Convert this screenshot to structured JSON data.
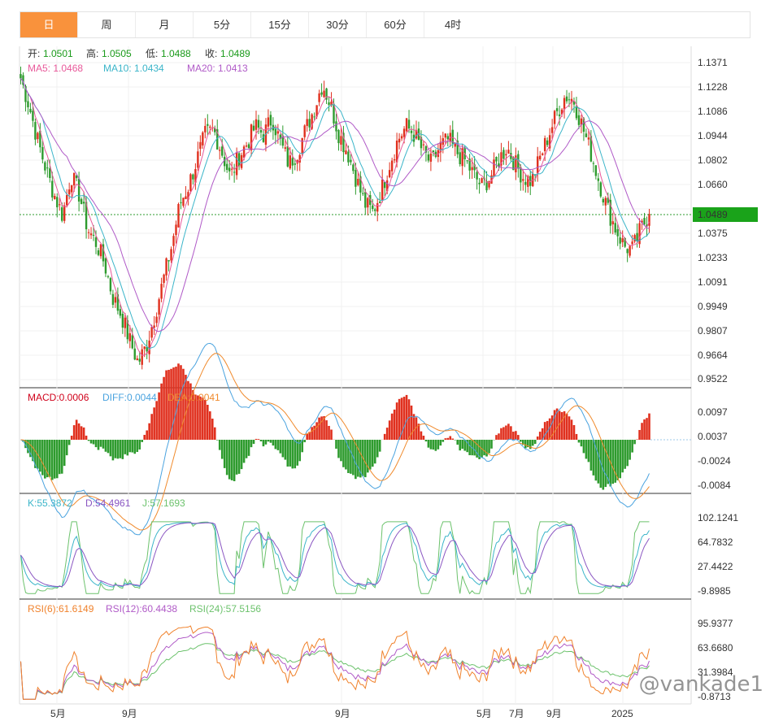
{
  "tabs": [
    "日",
    "周",
    "月",
    "5分",
    "15分",
    "30分",
    "60分",
    "4时"
  ],
  "active_tab": 0,
  "ohlc": {
    "open_label": "开:",
    "open": "1.0501",
    "high_label": "高:",
    "high": "1.0505",
    "low_label": "低:",
    "low": "1.0488",
    "close_label": "收:",
    "close": "1.0489"
  },
  "ma": {
    "ma5_label": "MA5: 1.0468",
    "ma10_label": "MA10: 1.0434",
    "ma20_label": "MA20: 1.0413"
  },
  "price_axis": [
    "1.1371",
    "1.1228",
    "1.1086",
    "1.0944",
    "1.0802",
    "1.0660",
    "1.0375",
    "1.0233",
    "1.0091",
    "0.9949",
    "0.9807",
    "0.9664",
    "0.9522"
  ],
  "last_price": "1.0489",
  "macd": {
    "macd_label": "MACD:0.0006",
    "diff_label": "DIFF:0.0044",
    "dea_label": "DEA:0.0041",
    "axis": [
      "0.0097",
      "0.0037",
      "-0.0024",
      "-0.0084"
    ]
  },
  "kdj": {
    "k_label": "K:55.3872",
    "d_label": "D:54.4961",
    "j_label": "J:57.1693",
    "axis": [
      "102.1241",
      "64.7832",
      "27.4422",
      "-9.8985"
    ]
  },
  "rsi": {
    "r6_label": "RSI(6):61.6149",
    "r12_label": "RSI(12):60.4438",
    "r24_label": "RSI(24):57.5156",
    "axis": [
      "95.9377",
      "63.6680",
      "31.3984",
      "-0.8713"
    ]
  },
  "x_axis": [
    "5月",
    "9月",
    "9月",
    "5月",
    "7月",
    "9月",
    "2025"
  ],
  "watermark": "@vankade1",
  "colors": {
    "up": "#e0301e",
    "down": "#2e9b2e",
    "accent": "#f9923c",
    "ma5": "#e8599a",
    "ma10": "#3bb5c9",
    "ma20": "#b05ac7",
    "macd_diff": "#4aa3df",
    "macd_dea": "#f08a2c",
    "k": "#3bb5c9",
    "d": "#8a56c2",
    "j": "#6cc26c",
    "rsi6": "#f0822c",
    "rsi12": "#b05ac7",
    "rsi24": "#6cc26c",
    "ohlc_value": "#1a9a1a",
    "macd_label": "#d0021b"
  },
  "chart_data": {
    "type": "candlestick",
    "yaxis_price": [
      0.9522,
      1.1371
    ],
    "close_path": [
      1.128,
      1.112,
      1.092,
      1.075,
      1.06,
      1.048,
      1.072,
      1.06,
      1.04,
      1.032,
      1.02,
      1.0,
      0.99,
      0.975,
      0.962,
      0.972,
      0.99,
      1.01,
      1.03,
      1.055,
      1.065,
      1.08,
      1.095,
      1.098,
      1.085,
      1.07,
      1.082,
      1.09,
      1.1,
      1.095,
      1.105,
      1.09,
      1.078,
      1.085,
      1.098,
      1.11,
      1.125,
      1.112,
      1.095,
      1.085,
      1.07,
      1.055,
      1.05,
      1.062,
      1.078,
      1.092,
      1.1,
      1.095,
      1.085,
      1.078,
      1.088,
      1.092,
      1.085,
      1.08,
      1.072,
      1.065,
      1.07,
      1.08,
      1.088,
      1.078,
      1.07,
      1.068,
      1.082,
      1.095,
      1.108,
      1.118,
      1.115,
      1.1,
      1.085,
      1.068,
      1.052,
      1.04,
      1.03,
      1.028,
      1.04,
      1.049
    ],
    "last_price": 1.0489
  }
}
